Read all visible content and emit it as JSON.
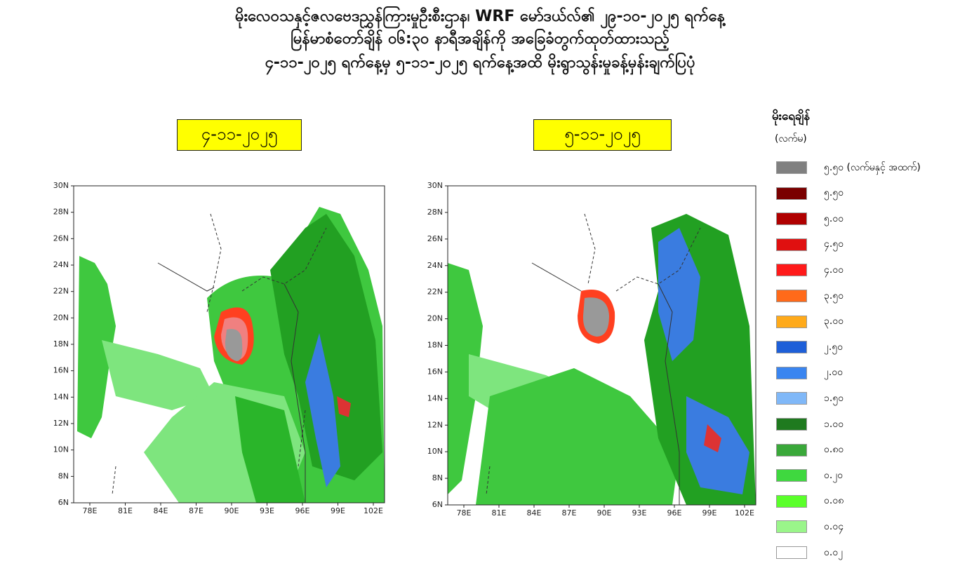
{
  "header": {
    "lines": [
      "မိုးလေဝသနှင့်ဇလဗေဒညွှန်ကြားမှုဦးစီးဌာန၊ WRF မော်ဒယ်လ်၏ ၂၉-၁၀-၂၀၂၅ ရက်နေ့",
      "မြန်မာစံတော်ချိန် ၀၆:၃၀ နာရီအချိန်ကို အခြေခံတွက်ထုတ်ထားသည့်",
      "၄-၁၁-၂၀၂၅ ရက်နေ့မှ ၅-၁၁-၂၀၂၅ ရက်နေ့အထိ မိုးရွာသွန်းမှုခန့်မှန်းချက်ပြပုံ"
    ]
  },
  "maps": [
    {
      "date": "၄-၁၁-၂၀၂၅"
    },
    {
      "date": "၅-၁၁-၂၀၂၅"
    }
  ],
  "axes": {
    "xticks": [
      "78E",
      "81E",
      "84E",
      "87E",
      "90E",
      "93E",
      "96E",
      "99E",
      "102E"
    ],
    "yticks": [
      "6N",
      "8N",
      "10N",
      "12N",
      "14N",
      "16N",
      "18N",
      "20N",
      "22N",
      "24N",
      "26N",
      "28N",
      "30N"
    ]
  },
  "legend": {
    "title": "မိုးရေချိန်",
    "unit": "(လက်မ)",
    "items": [
      {
        "label": "၅.၅၀ (လက်မနှင့် အထက်)",
        "color": "#808080"
      },
      {
        "label": "၅.၅၀",
        "color": "#7a0000"
      },
      {
        "label": "၅.၀၀",
        "color": "#b00000"
      },
      {
        "label": "၄.၅၀",
        "color": "#e01010"
      },
      {
        "label": "၄.၀၀",
        "color": "#ff1a1a"
      },
      {
        "label": "၃.၅၀",
        "color": "#ff6a1a"
      },
      {
        "label": "၃.၀၀",
        "color": "#ffaa1a"
      },
      {
        "label": "၂.၅၀",
        "color": "#1e5fd8"
      },
      {
        "label": "၂.၀၀",
        "color": "#3a85f0"
      },
      {
        "label": "၁.၅၀",
        "color": "#80b8f8"
      },
      {
        "label": "၁.၀၀",
        "color": "#1f7a1f"
      },
      {
        "label": "၀.၈၀",
        "color": "#3aa83a"
      },
      {
        "label": "၀.၂၀",
        "color": "#3fd83f"
      },
      {
        "label": "၀.၀၈",
        "color": "#5aff2a"
      },
      {
        "label": "၀.၀၄",
        "color": "#9af58a"
      },
      {
        "label": "၀.၀၂",
        "color": "#ffffff"
      }
    ]
  }
}
